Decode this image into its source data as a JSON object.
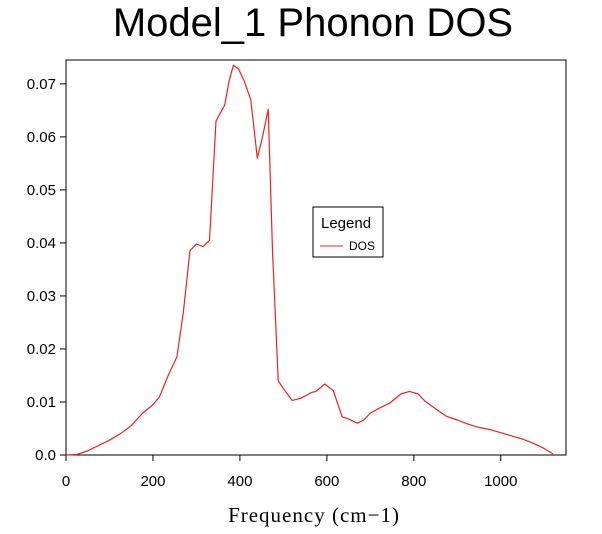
{
  "chart_data": {
    "type": "line",
    "title": "Model_1 Phonon DOS",
    "xlabel": "Frequency (cm−1)",
    "ylabel": "",
    "xlim": [
      0,
      1150
    ],
    "ylim": [
      0,
      0.0745
    ],
    "xticks": [
      0,
      200,
      400,
      600,
      800,
      1000
    ],
    "xtick_labels": [
      "0",
      "200",
      "400",
      "600",
      "800",
      "1000"
    ],
    "yticks": [
      0,
      0.01,
      0.02,
      0.03,
      0.04,
      0.05,
      0.06,
      0.07
    ],
    "ytick_labels": [
      "0.0",
      "0.01",
      "0.02",
      "0.03",
      "0.04",
      "0.05",
      "0.06",
      "0.07"
    ],
    "grid": false,
    "legend": {
      "title": "Legend",
      "placement": "center-right"
    },
    "series": [
      {
        "name": "DOS",
        "color": "#e8231f",
        "x": [
          0,
          25,
          50,
          75,
          100,
          125,
          150,
          175,
          200,
          215,
          235,
          255,
          270,
          285,
          300,
          315,
          330,
          345,
          365,
          375,
          385,
          397,
          410,
          425,
          440,
          452,
          465,
          475,
          488,
          500,
          520,
          540,
          565,
          575,
          595,
          615,
          635,
          650,
          670,
          685,
          700,
          720,
          745,
          770,
          790,
          810,
          825,
          850,
          875,
          900,
          925,
          950,
          975,
          1000,
          1025,
          1050,
          1075,
          1100,
          1120
        ],
        "y": [
          0,
          0.0001,
          0.0008,
          0.0018,
          0.0028,
          0.004,
          0.0055,
          0.0078,
          0.0095,
          0.011,
          0.015,
          0.0185,
          0.027,
          0.0385,
          0.0398,
          0.0393,
          0.0405,
          0.063,
          0.066,
          0.0705,
          0.0735,
          0.0728,
          0.0705,
          0.067,
          0.056,
          0.06,
          0.0652,
          0.0385,
          0.014,
          0.0125,
          0.0103,
          0.0107,
          0.0118,
          0.012,
          0.0134,
          0.0121,
          0.0072,
          0.0068,
          0.006,
          0.0066,
          0.0079,
          0.0088,
          0.0098,
          0.0115,
          0.012,
          0.0115,
          0.0102,
          0.0087,
          0.0073,
          0.0066,
          0.0058,
          0.0052,
          0.0048,
          0.0042,
          0.0036,
          0.003,
          0.0022,
          0.0012,
          0.0002
        ]
      }
    ]
  }
}
